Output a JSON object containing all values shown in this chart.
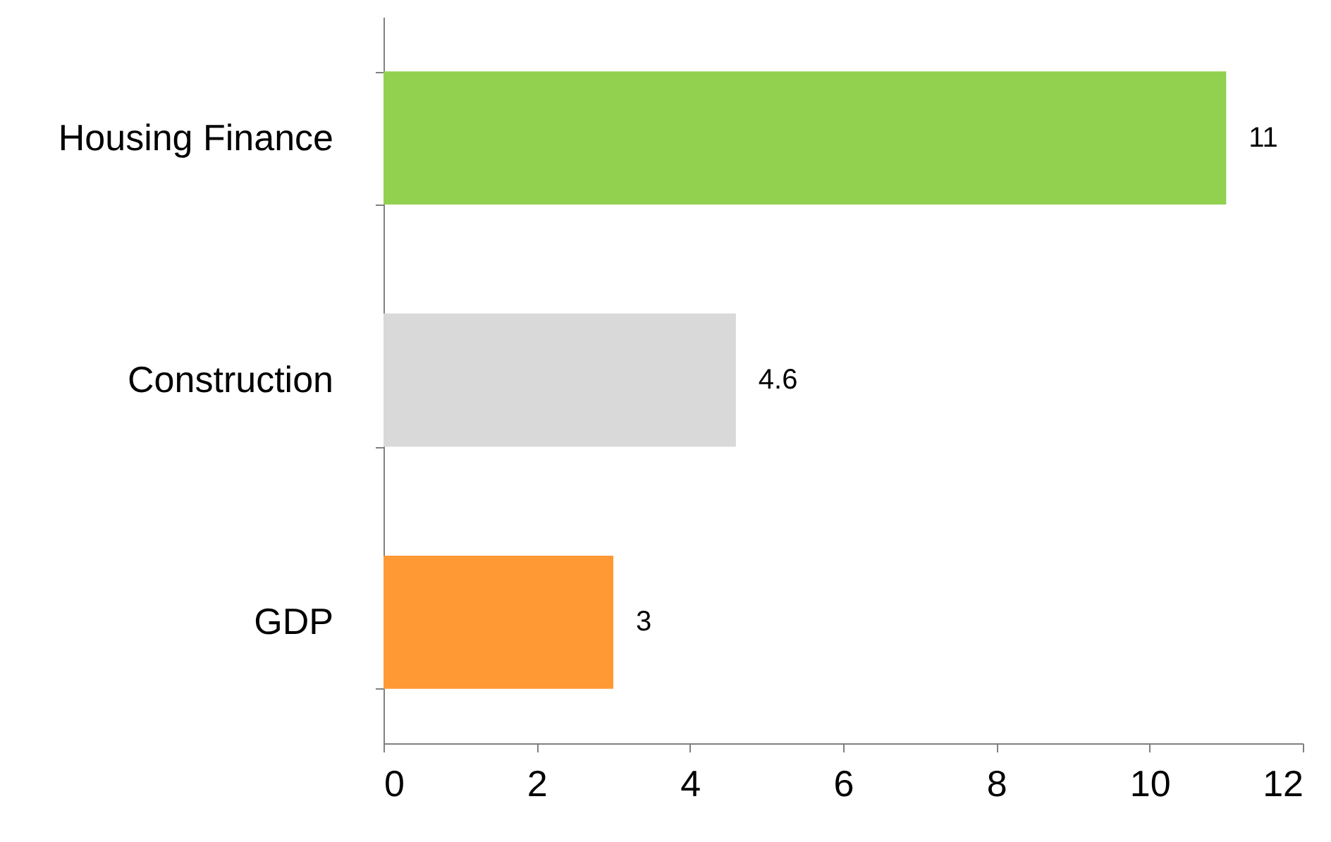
{
  "chart_data": {
    "type": "bar",
    "orientation": "horizontal",
    "categories": [
      "Housing Finance",
      "Construction",
      "GDP"
    ],
    "values": [
      11,
      4.6,
      3
    ],
    "colors": [
      "#92d050",
      "#d9d9d9",
      "#ff9933"
    ],
    "xlim": [
      0,
      12
    ],
    "xticks": [
      0,
      2,
      4,
      6,
      8,
      10,
      12
    ],
    "data_labels": true
  }
}
